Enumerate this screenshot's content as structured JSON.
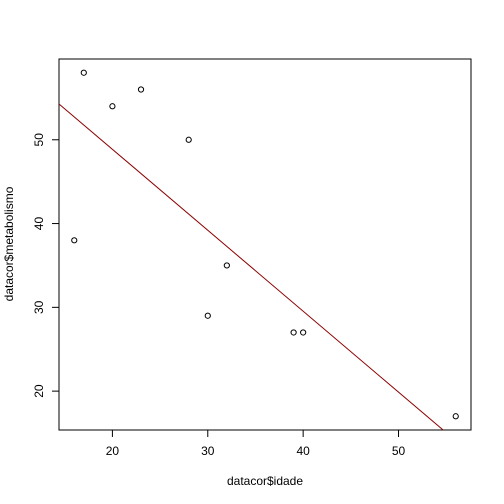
{
  "chart_data": {
    "type": "scatter",
    "x_label": "datacor$idade",
    "y_label": "datacor$metabolismo",
    "x": [
      16,
      17,
      20,
      23,
      28,
      30,
      32,
      39,
      40,
      56
    ],
    "y": [
      38,
      58,
      54,
      56,
      50,
      29,
      35,
      27,
      27,
      17
    ],
    "color": "#000000",
    "xlim": [
      14.4,
      57.6
    ],
    "ylim": [
      15.36,
      59.64
    ],
    "xticks": [
      20,
      30,
      40,
      50
    ],
    "yticks": [
      20,
      30,
      40,
      50
    ],
    "abline": {
      "intercept": 68.18,
      "slope": -0.966,
      "color": "#8b0000"
    }
  }
}
